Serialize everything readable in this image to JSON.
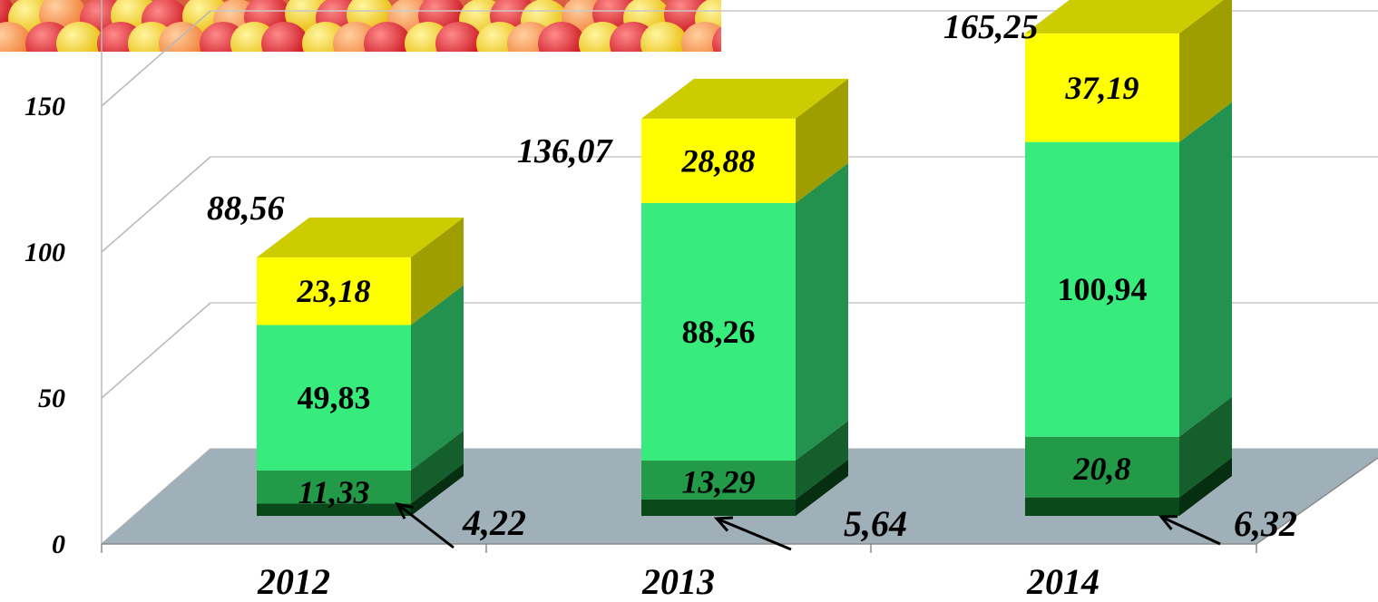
{
  "chart_data": {
    "type": "bar",
    "stacked": true,
    "three_d": true,
    "categories": [
      "2012",
      "2013",
      "2014"
    ],
    "series": [
      {
        "values": [
          4.22,
          5.64,
          6.32
        ],
        "color": "#0a4a1a"
      },
      {
        "values": [
          11.33,
          13.29,
          20.8
        ],
        "color": "#229a48"
      },
      {
        "values": [
          49.83,
          88.26,
          100.94
        ],
        "color": "#38eb7d"
      },
      {
        "values": [
          23.18,
          28.88,
          37.19
        ],
        "color": "#ffff00"
      }
    ],
    "data_labels": [
      [
        "4,22",
        "11,33",
        "49,83",
        "23,18"
      ],
      [
        "5,64",
        "13,29",
        "88,26",
        "28,88"
      ],
      [
        "6,32",
        "20,8",
        "100,94",
        "37,19"
      ]
    ],
    "totals": [
      88.56,
      136.07,
      165.25
    ],
    "total_labels": [
      "88,56",
      "136,07",
      "165,25"
    ],
    "y_ticks": [
      "0",
      "50",
      "100",
      "150"
    ],
    "ylim": [
      0,
      150
    ],
    "grid": true,
    "legend": "none",
    "floor_color": "#9fb0b8"
  }
}
